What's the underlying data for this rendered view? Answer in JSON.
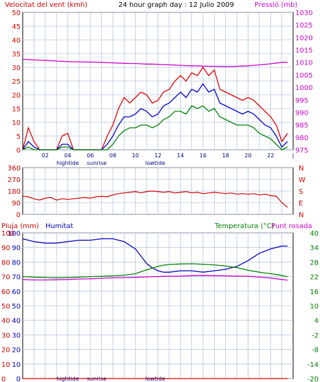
{
  "header": {
    "wind_label": "Velocitat del vent (kmh)",
    "title": "24 hour graph day : 12 Julio 2009",
    "pressure_label": "Pressió (mb)"
  },
  "middle": {
    "dir_letters": [
      "N",
      "W",
      "S",
      "E",
      "N"
    ]
  },
  "bottom": {
    "rain_label": "Pluja (mm)",
    "hum_label": "Humitat",
    "temp_label": "Temperatura (°C)",
    "dew_label": "Punt rosada"
  },
  "events": {
    "hightide": "hightide",
    "sunrise": "sunrise",
    "lowtide": "lowtide"
  },
  "colors": {
    "wind_max": "#dd0000",
    "wind_avg": "#0000cc",
    "wind_min": "#008000",
    "pressure": "#cc00cc",
    "direction": "#cc0000",
    "humidity": "#0000bb",
    "temperature": "#008000",
    "dew_point": "#cc00cc",
    "rain": "#cc0000",
    "grid": "#b0c4de"
  },
  "chart_data": [
    {
      "type": "line",
      "title": "24 hour graph day : 12 Julio 2009",
      "x_ticks": [
        "02",
        "04",
        "06",
        "08",
        "10",
        "12",
        "14",
        "16",
        "18",
        "20",
        "22",
        "|"
      ],
      "ylabel_left": "Velocitat del vent (kmh)",
      "ylim_left": [
        0,
        50
      ],
      "yticks_left": [
        0,
        5,
        10,
        15,
        20,
        25,
        30,
        35,
        40,
        45,
        50
      ],
      "ylabel_right": "Pressió (mb)",
      "ylim_right": [
        975,
        1030
      ],
      "yticks_right": [
        975,
        980,
        985,
        990,
        995,
        1000,
        1005,
        1010,
        1015,
        1020,
        1025,
        1030
      ],
      "x_hours": [
        0,
        0.5,
        1,
        1.5,
        2,
        3,
        3.5,
        4,
        4.5,
        5,
        6,
        7,
        7.5,
        8,
        8.5,
        9,
        9.5,
        10,
        10.5,
        11,
        11.5,
        12,
        12.5,
        13,
        13.5,
        14,
        14.5,
        15,
        15.5,
        16,
        16.5,
        17,
        17.5,
        18,
        18.5,
        19,
        19.5,
        20,
        20.5,
        21,
        21.5,
        22,
        22.5,
        23,
        23.5
      ],
      "series": [
        {
          "name": "Velocitat del vent (max)",
          "axis": "left",
          "values": [
            0,
            8,
            3,
            0,
            0,
            0,
            5,
            6,
            0,
            0,
            0,
            0,
            5,
            9,
            15,
            19,
            17,
            19,
            21,
            20,
            17,
            18,
            21,
            22,
            25,
            27,
            25,
            28,
            27,
            30,
            27,
            29,
            22,
            21,
            20,
            19,
            18,
            19,
            18,
            16,
            14,
            12,
            9,
            3,
            6
          ]
        },
        {
          "name": "Velocitat del vent (mitjana)",
          "axis": "left",
          "values": [
            0,
            3,
            1,
            0,
            0,
            0,
            2,
            2,
            0,
            0,
            0,
            0,
            2,
            5,
            9,
            12,
            12,
            13,
            15,
            14,
            12,
            13,
            16,
            17,
            19,
            21,
            19,
            22,
            21,
            24,
            21,
            22,
            17,
            16,
            15,
            14,
            13,
            14,
            13,
            11,
            9,
            8,
            5,
            1,
            3
          ]
        },
        {
          "name": "Velocitat del vent (min)",
          "axis": "left",
          "values": [
            0,
            1,
            0,
            0,
            0,
            0,
            1,
            1,
            0,
            0,
            0,
            0,
            0,
            2,
            5,
            7,
            8,
            8,
            9,
            9,
            8,
            9,
            11,
            12,
            14,
            14,
            13,
            16,
            15,
            16,
            14,
            15,
            12,
            11,
            10,
            9,
            9,
            9,
            8,
            6,
            5,
            4,
            2,
            0,
            1
          ]
        },
        {
          "name": "Pressió",
          "axis": "right",
          "values": [
            1011.2,
            1011.1,
            1011,
            1010.9,
            1010.8,
            1010.5,
            1010.4,
            1010.3,
            1010.2,
            1010.2,
            1010.1,
            1010,
            1009.9,
            1009.8,
            1009.7,
            1009.6,
            1009.5,
            1009.5,
            1009.4,
            1009.3,
            1009.3,
            1009.2,
            1009.1,
            1009,
            1008.9,
            1008.8,
            1008.7,
            1008.6,
            1008.6,
            1008.5,
            1008.4,
            1008.4,
            1008.3,
            1008.3,
            1008.3,
            1008.4,
            1008.5,
            1008.6,
            1008.8,
            1009,
            1009.2,
            1009.4,
            1009.7,
            1010,
            1010
          ]
        }
      ]
    },
    {
      "type": "line",
      "x_ticks": [
        "02",
        "04",
        "06",
        "08",
        "10",
        "12",
        "14",
        "16",
        "18",
        "20",
        "22",
        "|"
      ],
      "ylim": [
        0,
        360
      ],
      "yticks": [
        0,
        90,
        180,
        270,
        360
      ],
      "right_labels": [
        "N",
        "W",
        "S",
        "E",
        "N"
      ],
      "x_hours": [
        0,
        0.5,
        1,
        1.5,
        2,
        2.5,
        3,
        3.5,
        4,
        4.5,
        5,
        5.5,
        6,
        6.5,
        7,
        7.5,
        8,
        8.5,
        9,
        9.5,
        10,
        10.5,
        11,
        11.5,
        12,
        12.5,
        13,
        13.5,
        14,
        14.5,
        15,
        15.5,
        16,
        16.5,
        17,
        17.5,
        18,
        18.5,
        19,
        19.5,
        20,
        20.5,
        21,
        21.5,
        22,
        22.5,
        23,
        23.5
      ],
      "series": [
        {
          "name": "Direcció del vent",
          "values": [
            140,
            135,
            120,
            110,
            125,
            130,
            110,
            120,
            115,
            120,
            125,
            130,
            125,
            135,
            140,
            135,
            150,
            160,
            165,
            170,
            175,
            165,
            175,
            180,
            175,
            170,
            175,
            165,
            170,
            175,
            165,
            170,
            160,
            165,
            170,
            165,
            160,
            165,
            155,
            160,
            155,
            160,
            150,
            155,
            145,
            140,
            90,
            55
          ]
        }
      ]
    },
    {
      "type": "line",
      "x_ticks": [
        "02",
        "04",
        "06",
        "08",
        "10",
        "12",
        "14",
        "16",
        "18",
        "20",
        "22",
        "|"
      ],
      "ylabel_left_outer": "Pluja (mm)",
      "ylim_rain": [
        0,
        100
      ],
      "yticks_rain": [
        0,
        10,
        20,
        30,
        40,
        50,
        60,
        70,
        80,
        90,
        100
      ],
      "ylabel_left_inner": "Humitat",
      "ylim_hum": [
        0,
        100
      ],
      "yticks_hum": [
        0,
        10,
        20,
        30,
        40,
        50,
        60,
        70,
        80,
        90,
        100
      ],
      "ylabel_right": "Temperatura (°C) / Punt rosada",
      "ylim_temp": [
        -20,
        40
      ],
      "yticks_temp": [
        -20,
        -14,
        -8,
        -2,
        4,
        10,
        16,
        22,
        28,
        34,
        40
      ],
      "x_hours": [
        0,
        1,
        2,
        3,
        4,
        5,
        6,
        7,
        8,
        9,
        10,
        10.5,
        11,
        11.5,
        12,
        12.5,
        13,
        14,
        15,
        16,
        17,
        18,
        19,
        20,
        21,
        22,
        23,
        23.5
      ],
      "series": [
        {
          "name": "Humitat",
          "values": [
            96,
            94,
            93,
            93,
            94,
            95,
            95,
            96,
            96,
            94,
            89,
            84,
            79,
            76,
            74,
            73,
            73,
            74,
            74,
            73,
            74,
            75,
            77,
            81,
            86,
            89,
            91,
            91
          ]
        },
        {
          "name": "Temperatura",
          "values": [
            22,
            21.8,
            21.6,
            21.5,
            21.6,
            21.8,
            22,
            22.1,
            22.3,
            22.6,
            23.2,
            24,
            24.8,
            25.5,
            26.2,
            26.7,
            27,
            27.2,
            27.3,
            27.1,
            26.8,
            26.4,
            25.7,
            24.6,
            23.8,
            23.2,
            22.5,
            21.9
          ]
        },
        {
          "name": "Punt rosada",
          "values": [
            20.8,
            20.6,
            20.6,
            20.7,
            20.8,
            21,
            21.1,
            21.3,
            21.5,
            21.6,
            21.7,
            21.8,
            21.9,
            22,
            22,
            22.1,
            22.1,
            22.2,
            22.4,
            22.5,
            22.4,
            22.3,
            22.2,
            22.1,
            21.8,
            21.4,
            20.8,
            20.5
          ]
        },
        {
          "name": "Pluja",
          "values": [
            0,
            0,
            0,
            0,
            0,
            0,
            0,
            0,
            0,
            0,
            0,
            0,
            0,
            0,
            0,
            0,
            0,
            0,
            0,
            0,
            0,
            0,
            0,
            0,
            0,
            0,
            0,
            0
          ]
        }
      ]
    }
  ]
}
